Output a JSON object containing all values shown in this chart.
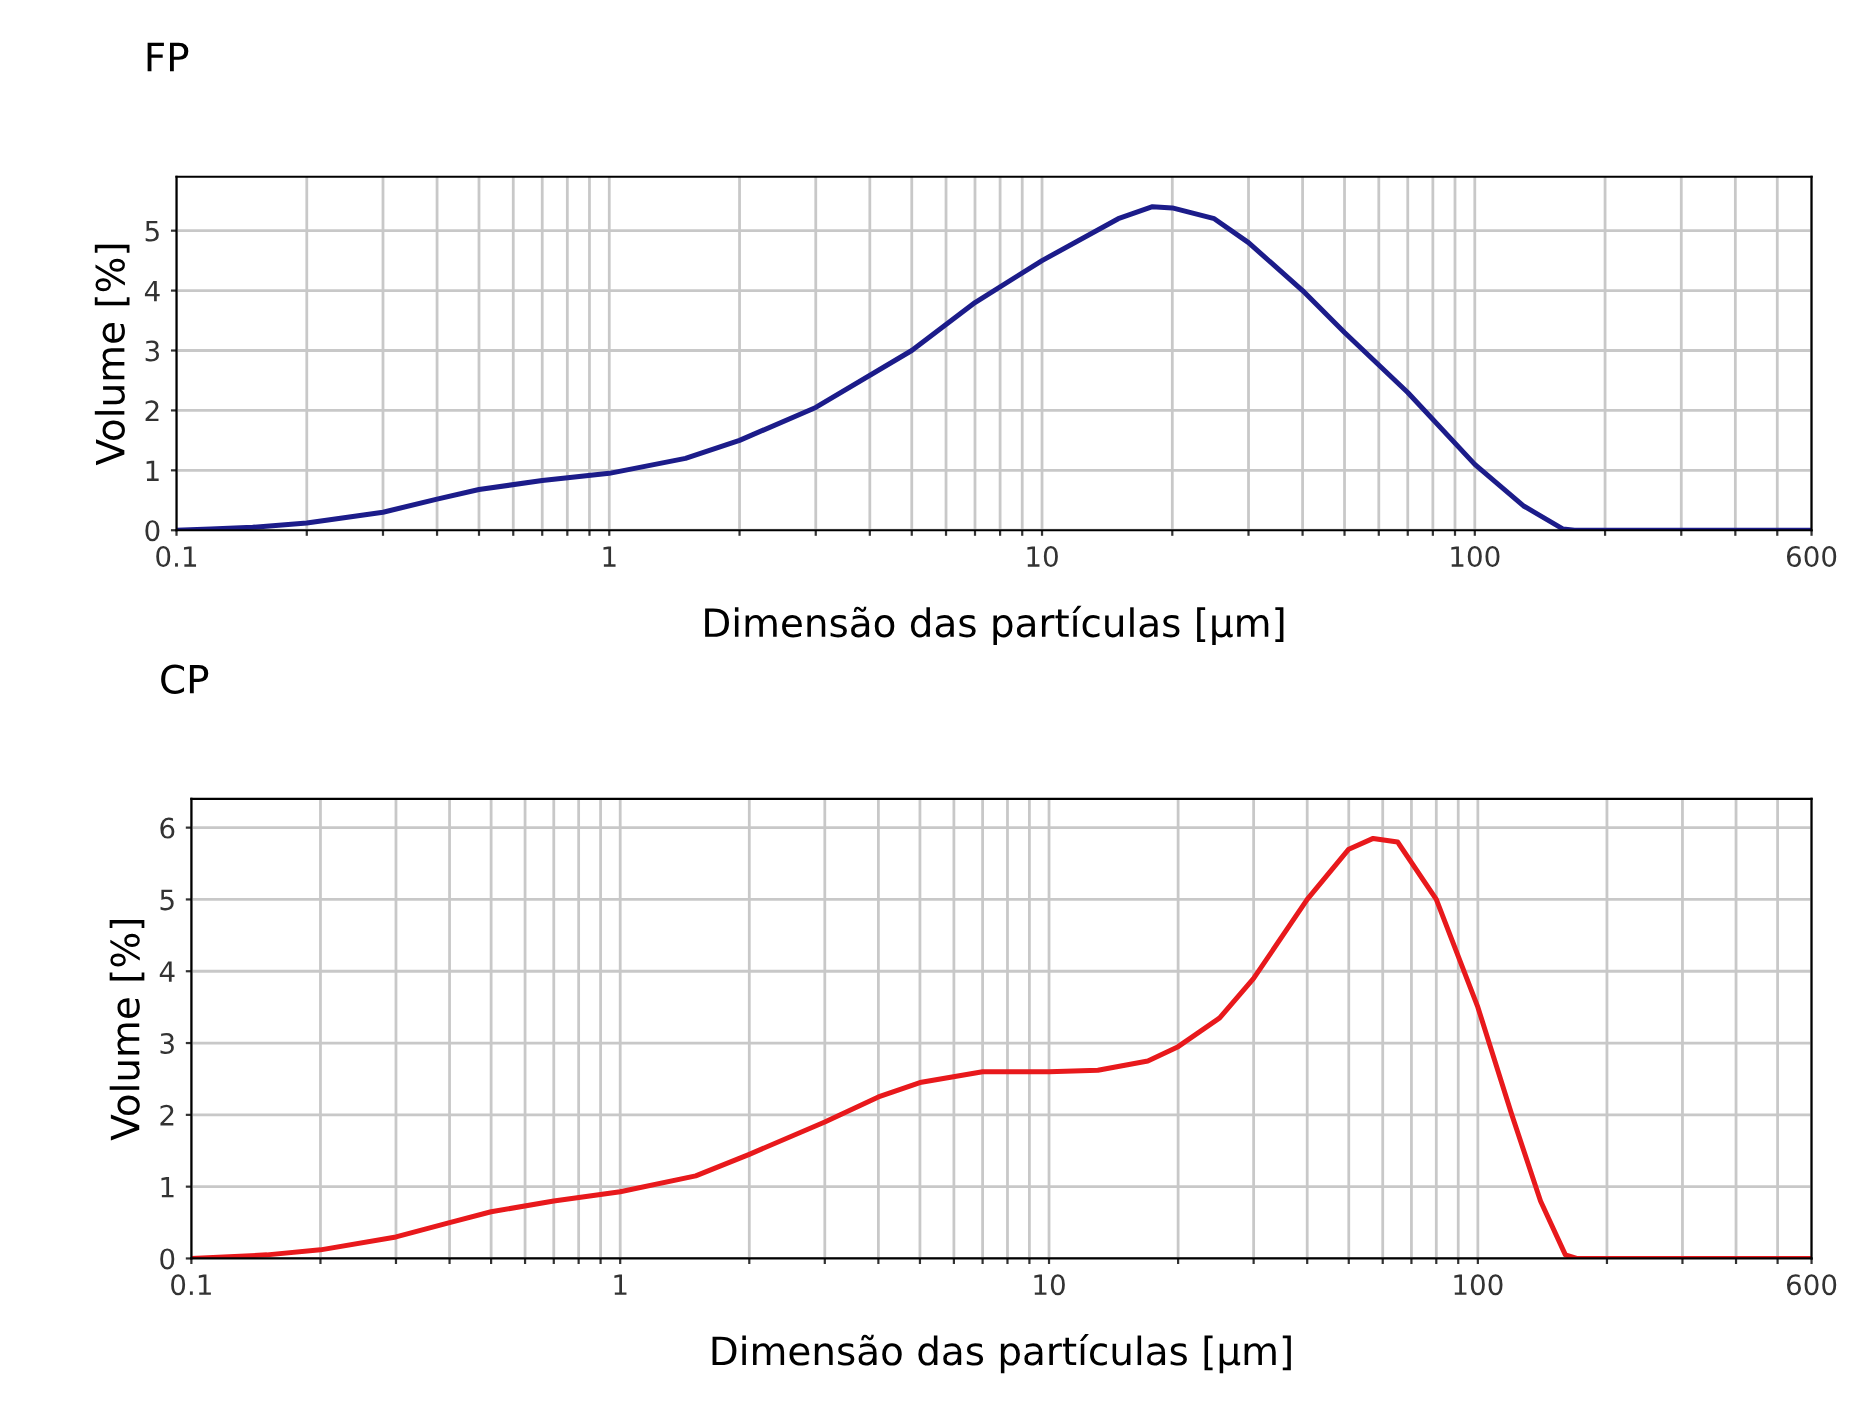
{
  "chart_data": [
    {
      "type": "line",
      "title": "FP",
      "xlabel": "Dimensão das partículas [µm]",
      "ylabel": "Volume [%]",
      "log": "x",
      "xlim": [
        0.1,
        600
      ],
      "ylim": [
        0,
        5.9
      ],
      "yticks": [
        0,
        1,
        2,
        3,
        4,
        5
      ],
      "xticks": [
        0.1,
        {
          "value": 0.2,
          "label": null
        },
        {
          "value": 0.3,
          "label": null
        },
        {
          "value": 0.4,
          "label": null
        },
        {
          "value": 0.5,
          "label": null
        },
        {
          "value": 0.6,
          "label": null
        },
        {
          "value": 0.7,
          "label": null
        },
        {
          "value": 0.8,
          "label": null
        },
        {
          "value": 0.9,
          "label": null
        },
        1,
        {
          "value": 2,
          "label": null
        },
        {
          "value": 3,
          "label": null
        },
        {
          "value": 4,
          "label": null
        },
        {
          "value": 5,
          "label": null
        },
        {
          "value": 6,
          "label": null
        },
        {
          "value": 7,
          "label": null
        },
        {
          "value": 8,
          "label": null
        },
        {
          "value": 9,
          "label": null
        },
        10,
        {
          "value": 20,
          "label": null
        },
        {
          "value": 30,
          "label": null
        },
        {
          "value": 40,
          "label": null
        },
        {
          "value": 50,
          "label": null
        },
        {
          "value": 60,
          "label": null
        },
        {
          "value": 70,
          "label": null
        },
        {
          "value": 80,
          "label": null
        },
        {
          "value": 90,
          "label": null
        },
        100,
        {
          "value": 200,
          "label": null
        },
        {
          "value": 300,
          "label": null
        },
        {
          "value": 400,
          "label": null
        },
        {
          "value": 500,
          "label": null
        },
        600
      ],
      "grid": true,
      "legend": false,
      "series": [
        {
          "color": "#1c1c8a",
          "x": [
            0.1,
            0.12,
            0.15,
            0.2,
            0.3,
            0.4,
            0.5,
            0.7,
            1,
            1.5,
            2,
            3,
            5,
            7,
            10,
            15,
            18,
            20,
            25,
            30,
            40,
            50,
            70,
            100,
            130,
            160,
            170,
            600
          ],
          "values": [
            0,
            0.02,
            0.05,
            0.12,
            0.3,
            0.52,
            0.68,
            0.83,
            0.95,
            1.2,
            1.5,
            2.05,
            3.0,
            3.8,
            4.5,
            5.2,
            5.4,
            5.38,
            5.2,
            4.8,
            4.0,
            3.3,
            2.3,
            1.1,
            0.4,
            0.02,
            0,
            0
          ]
        }
      ]
    },
    {
      "type": "line",
      "title": "CP",
      "xlabel": "Dimensão das partículas [µm]",
      "ylabel": "Volume [%]",
      "log": "x",
      "xlim": [
        0.1,
        600
      ],
      "ylim": [
        0,
        6.4
      ],
      "yticks": [
        0,
        1,
        2,
        3,
        4,
        5,
        6
      ],
      "xticks": [
        0.1,
        {
          "value": 0.2,
          "label": null
        },
        {
          "value": 0.3,
          "label": null
        },
        {
          "value": 0.4,
          "label": null
        },
        {
          "value": 0.5,
          "label": null
        },
        {
          "value": 0.6,
          "label": null
        },
        {
          "value": 0.7,
          "label": null
        },
        {
          "value": 0.8,
          "label": null
        },
        {
          "value": 0.9,
          "label": null
        },
        1,
        {
          "value": 2,
          "label": null
        },
        {
          "value": 3,
          "label": null
        },
        {
          "value": 4,
          "label": null
        },
        {
          "value": 5,
          "label": null
        },
        {
          "value": 6,
          "label": null
        },
        {
          "value": 7,
          "label": null
        },
        {
          "value": 8,
          "label": null
        },
        {
          "value": 9,
          "label": null
        },
        10,
        {
          "value": 20,
          "label": null
        },
        {
          "value": 30,
          "label": null
        },
        {
          "value": 40,
          "label": null
        },
        {
          "value": 50,
          "label": null
        },
        {
          "value": 60,
          "label": null
        },
        {
          "value": 70,
          "label": null
        },
        {
          "value": 80,
          "label": null
        },
        {
          "value": 90,
          "label": null
        },
        100,
        {
          "value": 200,
          "label": null
        },
        {
          "value": 300,
          "label": null
        },
        {
          "value": 400,
          "label": null
        },
        {
          "value": 500,
          "label": null
        },
        600
      ],
      "grid": true,
      "legend": false,
      "series": [
        {
          "color": "#e8191c",
          "x": [
            0.1,
            0.15,
            0.2,
            0.3,
            0.4,
            0.5,
            0.7,
            1,
            1.5,
            2,
            3,
            4,
            5,
            7,
            10,
            13,
            17,
            20,
            25,
            30,
            40,
            50,
            57,
            65,
            80,
            100,
            120,
            140,
            160,
            170,
            600
          ],
          "values": [
            0,
            0.05,
            0.12,
            0.3,
            0.5,
            0.65,
            0.8,
            0.93,
            1.15,
            1.45,
            1.9,
            2.25,
            2.45,
            2.6,
            2.6,
            2.62,
            2.75,
            2.95,
            3.35,
            3.9,
            5.0,
            5.7,
            5.85,
            5.8,
            5.0,
            3.5,
            2.0,
            0.8,
            0.05,
            0,
            0
          ]
        }
      ]
    }
  ]
}
